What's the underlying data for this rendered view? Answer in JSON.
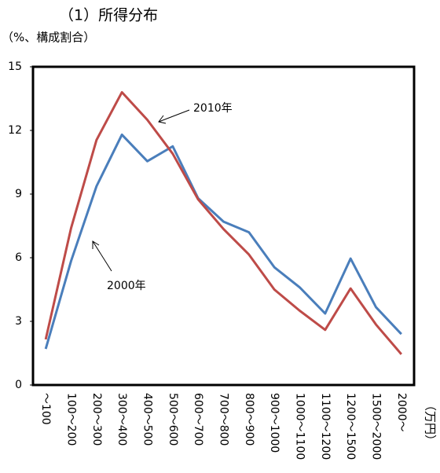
{
  "chart_data": {
    "type": "line",
    "title": "（1）所得分布",
    "y_label": "（%、構成割合）",
    "x_label": "（万円）",
    "categories": [
      "～100",
      "100～200",
      "200～300",
      "300～400",
      "400～500",
      "500～600",
      "600～700",
      "700～800",
      "800～900",
      "900～1000",
      "1000～1100",
      "1100～1200",
      "1200～1500",
      "1500～2000",
      "2000～"
    ],
    "series": [
      {
        "name": "2000年",
        "color": "#4a7ebb",
        "values": [
          1.7,
          5.85,
          9.37,
          11.8,
          10.55,
          11.25,
          8.8,
          7.7,
          7.2,
          5.55,
          4.6,
          3.37,
          5.96,
          3.67,
          2.4
        ]
      },
      {
        "name": "2010年",
        "color": "#be4b48",
        "values": [
          2.15,
          7.4,
          11.55,
          13.8,
          12.5,
          10.9,
          8.75,
          7.35,
          6.15,
          4.5,
          3.5,
          2.6,
          4.55,
          2.85,
          1.45
        ]
      }
    ],
    "ylim": [
      0,
      15
    ],
    "yticks": [
      0,
      3,
      6,
      9,
      12,
      15
    ],
    "grid": false
  }
}
